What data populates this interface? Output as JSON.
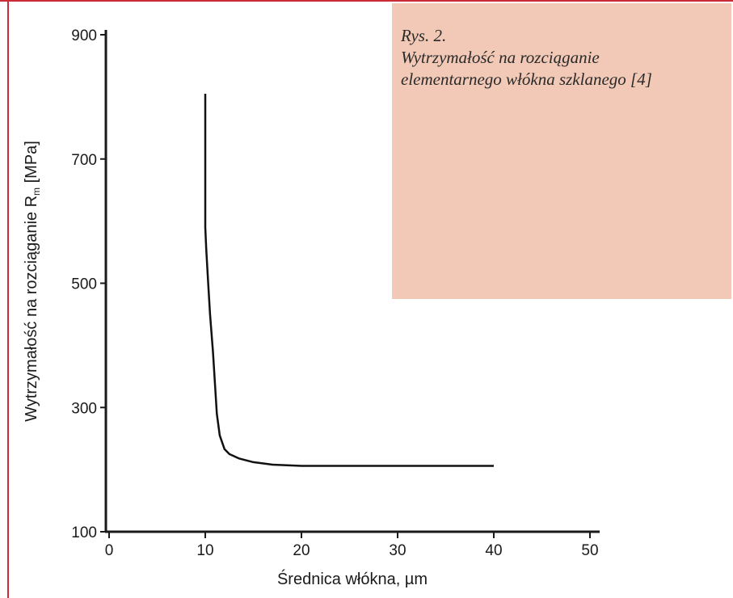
{
  "colors": {
    "frame_accent": "#cc2a36",
    "caption_bg": "#f2c8b6",
    "axis": "#1a1a1a",
    "line": "#111111",
    "background": "#ffffff"
  },
  "caption": {
    "line1": "Rys. 2.",
    "line2": "Wytrzymałość na rozciąganie",
    "line3": "elementarnego włókna szklanego [4]"
  },
  "chart_data": {
    "type": "line",
    "xlabel": "Średnica włókna, µm",
    "ylabel_main": "Wytrzymałość na rozciąganie R",
    "ylabel_sub": "m",
    "ylabel_unit": " [MPa]",
    "xlim": [
      0,
      50
    ],
    "ylim": [
      100,
      900
    ],
    "x_ticks": [
      0,
      10,
      20,
      30,
      40,
      50
    ],
    "y_ticks": [
      100,
      300,
      500,
      700,
      900
    ],
    "grid": false,
    "legend": "none",
    "series": [
      {
        "x": [
          10.0,
          10.0,
          10.1,
          10.3,
          10.5,
          10.8,
          11.0,
          11.2,
          11.5,
          12.0,
          12.5,
          13.5,
          15.0,
          17.0,
          20.0,
          25.0,
          30.0,
          35.0,
          40.0
        ],
        "y": [
          805,
          590,
          555,
          500,
          450,
          390,
          340,
          290,
          255,
          233,
          225,
          218,
          212,
          208,
          206,
          206,
          206,
          206,
          206
        ]
      }
    ]
  }
}
